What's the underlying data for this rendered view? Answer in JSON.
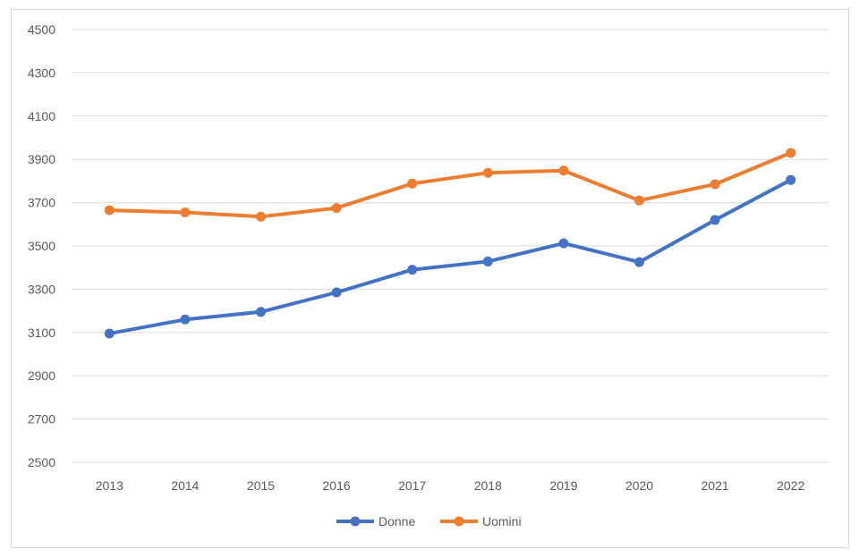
{
  "chart_data": {
    "type": "line",
    "title": "",
    "xlabel": "",
    "ylabel": "",
    "x": [
      "2013",
      "2014",
      "2015",
      "2016",
      "2017",
      "2018",
      "2019",
      "2020",
      "2021",
      "2022"
    ],
    "y_ticks": [
      "2500",
      "2700",
      "2900",
      "3100",
      "3300",
      "3500",
      "3700",
      "3900",
      "4100",
      "4300",
      "4500"
    ],
    "ylim": [
      2500,
      4500
    ],
    "grid": true,
    "legend_position": "bottom",
    "series": [
      {
        "name": "Donne",
        "color": "#4472C4",
        "values": [
          3095,
          3160,
          3195,
          3285,
          3390,
          3428,
          3512,
          3425,
          3620,
          3805
        ]
      },
      {
        "name": "Uomini",
        "color": "#ED7D31",
        "values": [
          3665,
          3655,
          3635,
          3675,
          3788,
          3838,
          3848,
          3710,
          3785,
          3930
        ]
      }
    ]
  }
}
